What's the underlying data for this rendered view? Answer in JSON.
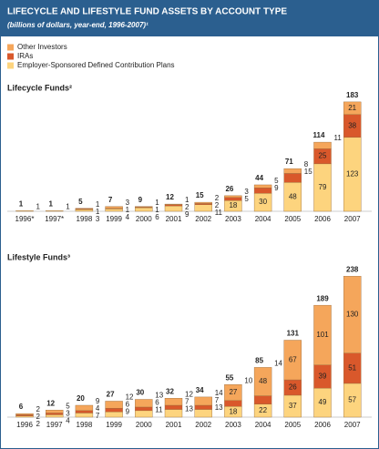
{
  "header": {
    "title": "LIFECYCLE AND LIFESTYLE FUND ASSETS BY ACCOUNT TYPE",
    "subtitle": "(billions of dollars, year-end, 1996-2007)¹"
  },
  "chart_data": [
    {
      "type": "bar",
      "stacked": true,
      "title": "Lifecycle Funds²",
      "categories": [
        "1996*",
        "1997*",
        "1998",
        "1999",
        "2000",
        "2001",
        "2002",
        "2003",
        "2004",
        "2005",
        "2006",
        "2007"
      ],
      "series": [
        {
          "name": "Other Investors",
          "color": "#f5a65b",
          "values": [
            null,
            null,
            1,
            3,
            1,
            1,
            2,
            3,
            5,
            8,
            11,
            21
          ]
        },
        {
          "name": "IRAs",
          "color": "#d9582b",
          "values": [
            null,
            null,
            1,
            1,
            1,
            2,
            2,
            5,
            9,
            15,
            25,
            38
          ]
        },
        {
          "name": "Employer-Sponsored Defined Contribution Plans",
          "color": "#fdd47e",
          "values": [
            1,
            1,
            3,
            4,
            6,
            9,
            11,
            18,
            30,
            48,
            79,
            123
          ]
        }
      ],
      "totals": [
        1,
        1,
        5,
        7,
        9,
        12,
        15,
        26,
        44,
        71,
        114,
        183
      ]
    },
    {
      "type": "bar",
      "stacked": true,
      "title": "Lifestyle Funds³",
      "categories": [
        "1996",
        "1997",
        "1998",
        "1999",
        "2000",
        "2001",
        "2002",
        "2003",
        "2004",
        "2005",
        "2006",
        "2007"
      ],
      "series": [
        {
          "color": "#f5a65b",
          "values": [
            2,
            5,
            9,
            12,
            13,
            12,
            14,
            27,
            48,
            67,
            101,
            130
          ]
        },
        {
          "color": "#d9582b",
          "values": [
            2,
            3,
            4,
            6,
            6,
            7,
            7,
            10,
            14,
            26,
            39,
            51
          ]
        },
        {
          "color": "#fdd47e",
          "values": [
            2,
            4,
            7,
            9,
            11,
            13,
            13,
            18,
            22,
            37,
            49,
            57
          ]
        }
      ],
      "totals": [
        6,
        12,
        20,
        27,
        30,
        32,
        34,
        55,
        85,
        131,
        189,
        238
      ]
    }
  ]
}
